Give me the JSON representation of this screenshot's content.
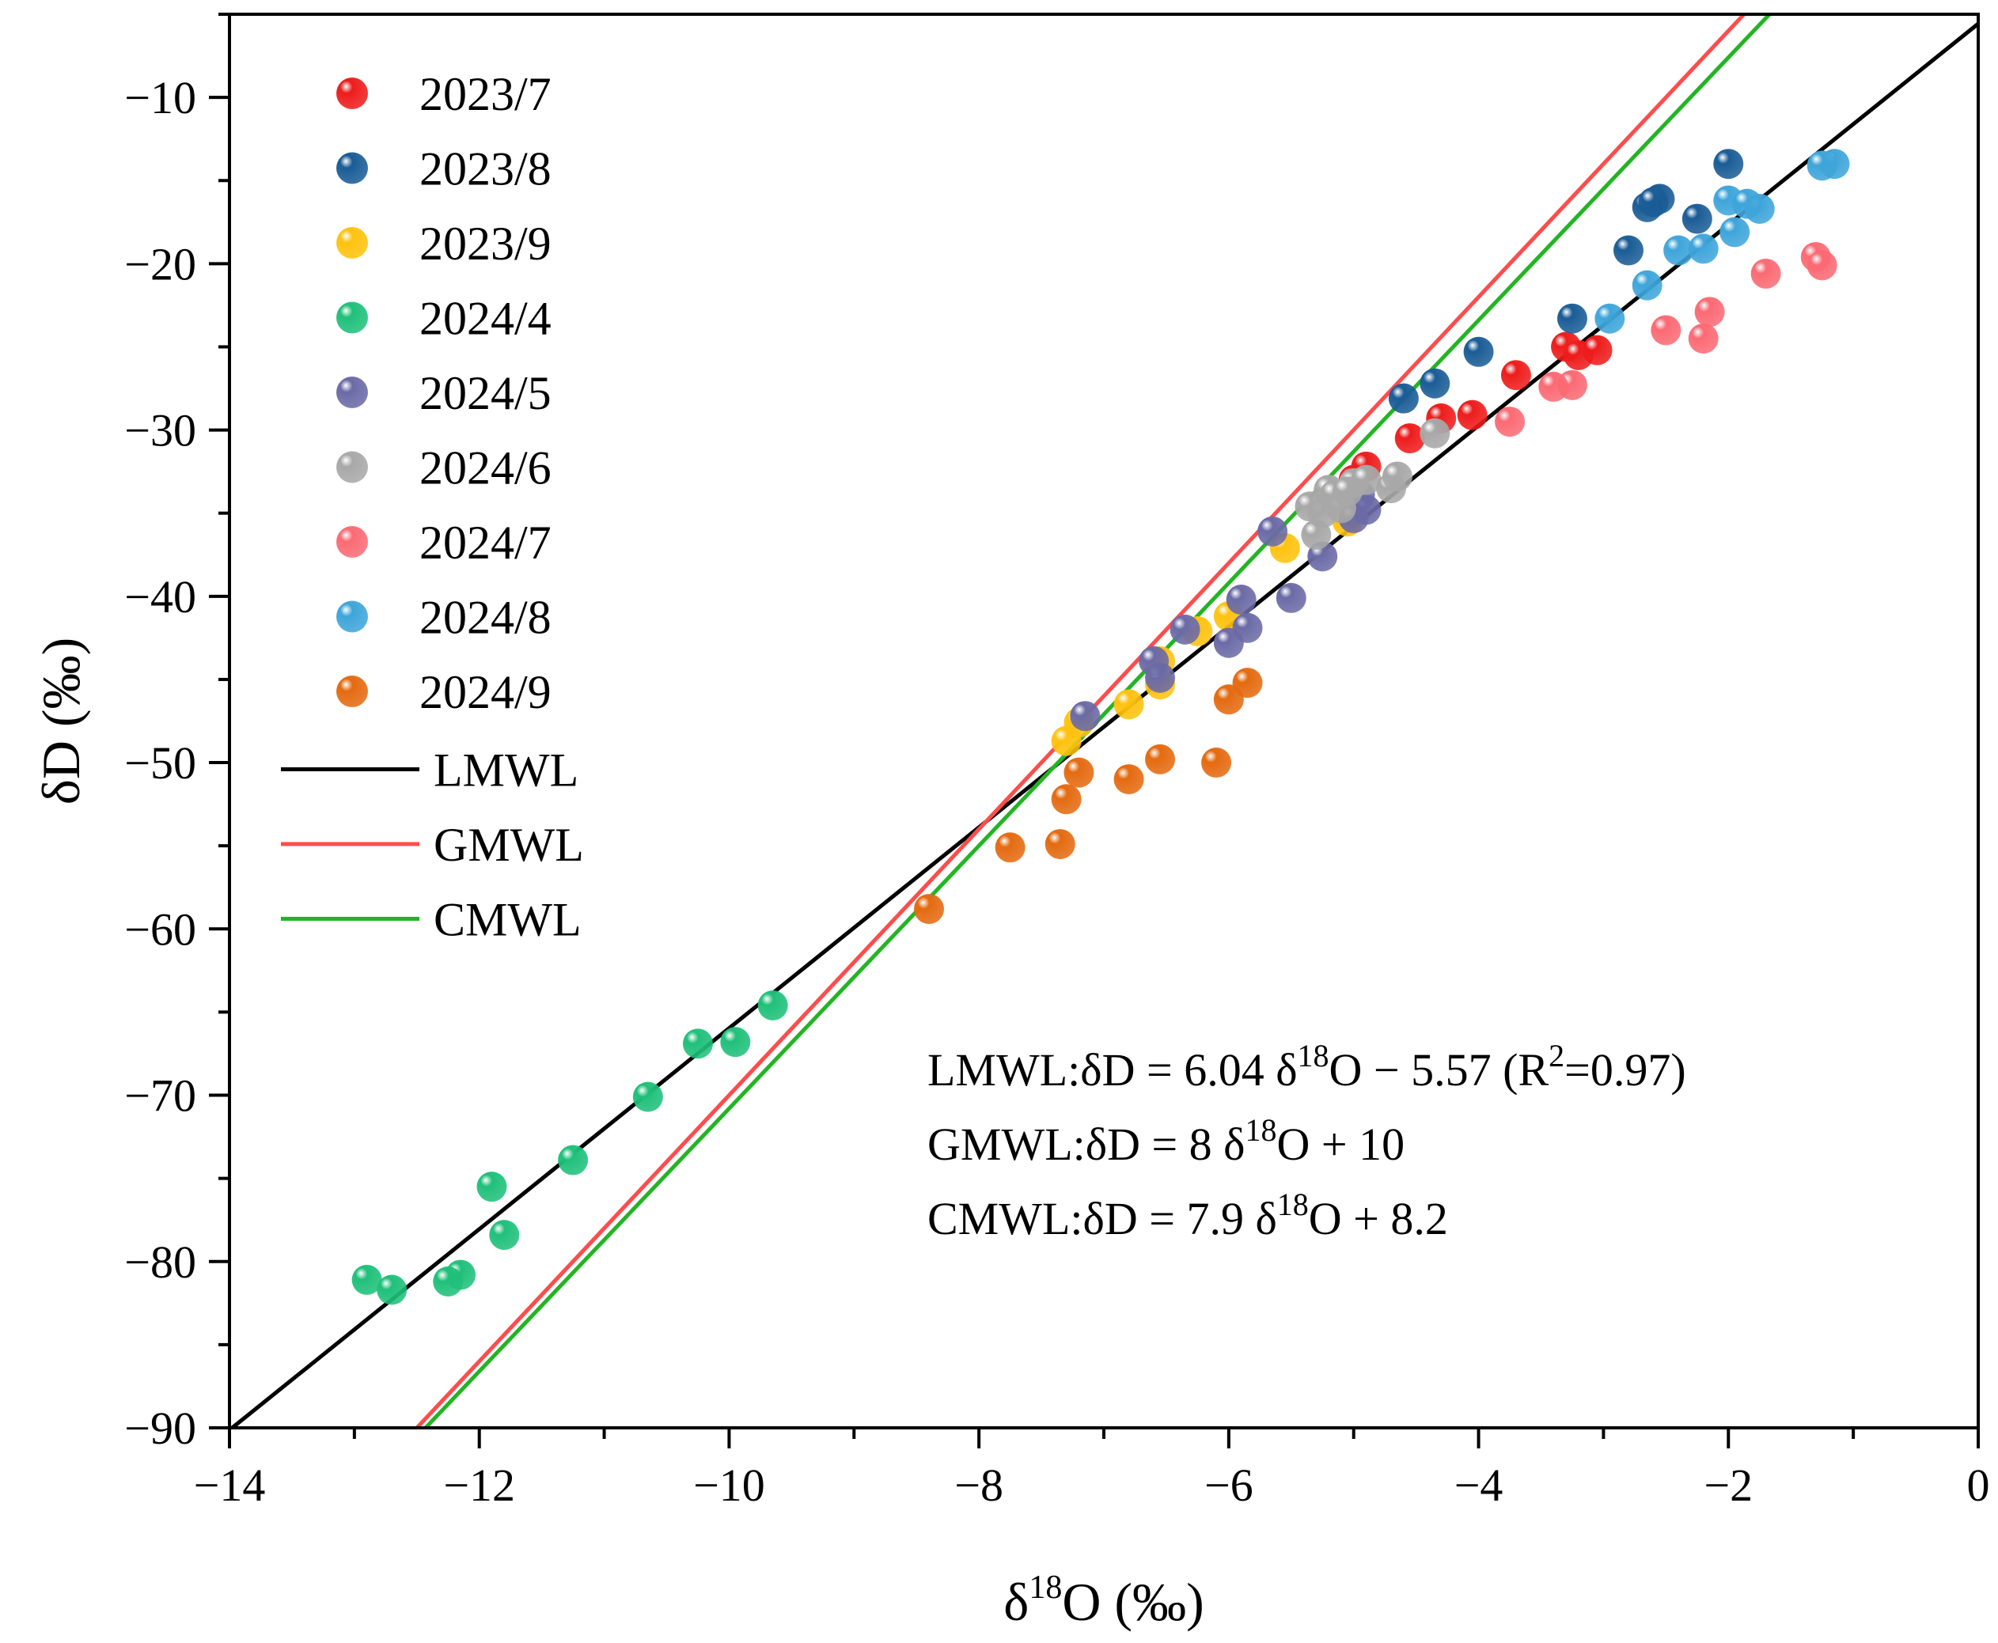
{
  "chart_data": {
    "type": "scatter",
    "xlabel": {
      "base": "δ",
      "sup": "18",
      "rest": "O (‰)"
    },
    "ylabel": "δD (‰)",
    "xlim": [
      -14,
      0
    ],
    "ylim": [
      -90,
      -5
    ],
    "x_ticks": [
      {
        "value": -14,
        "label": "−14"
      },
      {
        "value": -12,
        "label": "−12"
      },
      {
        "value": -10,
        "label": "−10"
      },
      {
        "value": -8,
        "label": "−8"
      },
      {
        "value": -6,
        "label": "−6"
      },
      {
        "value": -4,
        "label": "−4"
      },
      {
        "value": -2,
        "label": "−2"
      },
      {
        "value": 0,
        "label": "0"
      }
    ],
    "y_ticks": [
      {
        "value": -90,
        "label": "−90"
      },
      {
        "value": -80,
        "label": "−80"
      },
      {
        "value": -70,
        "label": "−70"
      },
      {
        "value": -60,
        "label": "−60"
      },
      {
        "value": -50,
        "label": "−50"
      },
      {
        "value": -40,
        "label": "−40"
      },
      {
        "value": -30,
        "label": "−30"
      },
      {
        "value": -20,
        "label": "−20"
      },
      {
        "value": -10,
        "label": "−10"
      }
    ],
    "series": [
      {
        "name": "2023/7",
        "color": "#ee1c1c",
        "points": [
          [
            -3.3,
            -25.0
          ],
          [
            -3.2,
            -25.5
          ],
          [
            -3.05,
            -25.2
          ],
          [
            -3.7,
            -26.7
          ],
          [
            -4.05,
            -29.1
          ],
          [
            -4.3,
            -29.3
          ],
          [
            -4.55,
            -30.5
          ],
          [
            -4.9,
            -32.2
          ],
          [
            -5.0,
            -33.0
          ]
        ]
      },
      {
        "name": "2023/8",
        "color": "#1a5c96",
        "points": [
          [
            -2.0,
            -14.0
          ],
          [
            -2.55,
            -16.1
          ],
          [
            -2.65,
            -16.6
          ],
          [
            -2.6,
            -16.3
          ],
          [
            -2.25,
            -17.3
          ],
          [
            -2.8,
            -19.2
          ],
          [
            -3.25,
            -23.3
          ],
          [
            -4.0,
            -25.3
          ],
          [
            -4.35,
            -27.2
          ],
          [
            -4.6,
            -28.1
          ]
        ]
      },
      {
        "name": "2023/9",
        "color": "#ffc20e",
        "points": [
          [
            -5.05,
            -35.5
          ],
          [
            -5.55,
            -37.1
          ],
          [
            -6.0,
            -41.2
          ],
          [
            -6.25,
            -42.1
          ],
          [
            -6.55,
            -43.9
          ],
          [
            -6.55,
            -45.3
          ],
          [
            -6.8,
            -46.5
          ],
          [
            -7.3,
            -48.7
          ],
          [
            -7.2,
            -47.6
          ]
        ]
      },
      {
        "name": "2024/4",
        "color": "#1fc07a",
        "points": [
          [
            -9.65,
            -64.6
          ],
          [
            -9.95,
            -66.8
          ],
          [
            -10.25,
            -66.9
          ],
          [
            -10.65,
            -70.1
          ],
          [
            -11.25,
            -73.9
          ],
          [
            -11.9,
            -75.5
          ],
          [
            -11.8,
            -78.4
          ],
          [
            -12.15,
            -80.8
          ],
          [
            -12.25,
            -81.2
          ],
          [
            -12.9,
            -81.1
          ],
          [
            -12.7,
            -81.7
          ]
        ]
      },
      {
        "name": "2024/5",
        "color": "#6b6aa6",
        "points": [
          [
            -7.15,
            -47.2
          ],
          [
            -6.55,
            -44.9
          ],
          [
            -6.6,
            -43.9
          ],
          [
            -6.35,
            -42.0
          ],
          [
            -6.0,
            -42.8
          ],
          [
            -5.85,
            -41.9
          ],
          [
            -5.9,
            -40.2
          ],
          [
            -5.5,
            -40.1
          ],
          [
            -5.25,
            -37.6
          ],
          [
            -5.65,
            -36.1
          ],
          [
            -4.9,
            -34.8
          ],
          [
            -5.0,
            -35.3
          ],
          [
            -4.95,
            -33.9
          ]
        ]
      },
      {
        "name": "2024/6",
        "color": "#a8a8a8",
        "points": [
          [
            -5.3,
            -36.3
          ],
          [
            -5.25,
            -35.0
          ],
          [
            -5.35,
            -34.6
          ],
          [
            -5.2,
            -33.6
          ],
          [
            -5.1,
            -34.7
          ],
          [
            -5.0,
            -33.2
          ],
          [
            -4.9,
            -33.0
          ],
          [
            -4.7,
            -33.5
          ],
          [
            -4.65,
            -32.8
          ],
          [
            -4.35,
            -30.2
          ],
          [
            -5.15,
            -33.9
          ],
          [
            -5.05,
            -33.7
          ]
        ]
      },
      {
        "name": "2024/7",
        "color": "#fb6a74",
        "points": [
          [
            -1.3,
            -19.6
          ],
          [
            -1.25,
            -20.1
          ],
          [
            -1.7,
            -20.6
          ],
          [
            -2.15,
            -22.9
          ],
          [
            -2.5,
            -24.0
          ],
          [
            -2.2,
            -24.5
          ],
          [
            -3.25,
            -27.3
          ],
          [
            -3.4,
            -27.4
          ],
          [
            -3.75,
            -29.5
          ]
        ]
      },
      {
        "name": "2024/8",
        "color": "#3ea5da",
        "points": [
          [
            -1.15,
            -14.0
          ],
          [
            -1.25,
            -14.1
          ],
          [
            -1.75,
            -16.7
          ],
          [
            -2.0,
            -16.2
          ],
          [
            -1.85,
            -16.4
          ],
          [
            -1.95,
            -18.1
          ],
          [
            -2.2,
            -19.1
          ],
          [
            -2.4,
            -19.2
          ],
          [
            -2.65,
            -21.3
          ],
          [
            -2.95,
            -23.3
          ]
        ]
      },
      {
        "name": "2024/9",
        "color": "#e46a10",
        "points": [
          [
            -5.85,
            -45.2
          ],
          [
            -6.0,
            -46.2
          ],
          [
            -6.1,
            -50.0
          ],
          [
            -6.55,
            -49.8
          ],
          [
            -6.8,
            -51.0
          ],
          [
            -7.2,
            -50.6
          ],
          [
            -7.3,
            -52.2
          ],
          [
            -7.35,
            -54.9
          ],
          [
            -7.75,
            -55.1
          ],
          [
            -8.4,
            -58.8
          ]
        ]
      }
    ],
    "lines": [
      {
        "name": "LMWL",
        "color": "#000000",
        "slope": 6.04,
        "intercept": -5.57
      },
      {
        "name": "GMWL",
        "color": "#ff4c4c",
        "slope": 8,
        "intercept": 10
      },
      {
        "name": "CMWL",
        "color": "#22b522",
        "slope": 7.9,
        "intercept": 8.2
      }
    ],
    "legend_position": "top-left",
    "equations": [
      {
        "pre": "LMWL:δD = 6.04 δ",
        "sup": "18",
        "post": "O  − 5.57  (R",
        "sup2": "2",
        "post2": "=0.97)"
      },
      {
        "pre": "GMWL:δD = 8 δ",
        "sup": "18",
        "post": "O + 10"
      },
      {
        "pre": "CMWL:δD = 7.9 δ",
        "sup": "18",
        "post": "O + 8.2"
      }
    ]
  }
}
